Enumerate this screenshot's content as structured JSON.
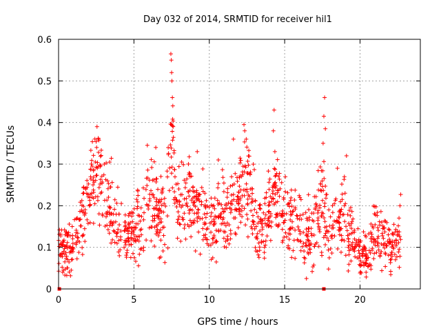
{
  "chart_data": {
    "type": "scatter",
    "title": "Day 032 of 2014, SRMTID for receiver hil1",
    "xlabel": "GPS time / hours",
    "ylabel": "SRMTID / TECUs",
    "xlim": [
      0,
      24
    ],
    "ylim": [
      0,
      0.6
    ],
    "x_ticks": [
      0,
      5,
      10,
      15,
      20
    ],
    "x_tick_labels": [
      "0",
      "5",
      "10",
      "15",
      "20"
    ],
    "y_ticks": [
      0,
      0.1,
      0.2,
      0.3,
      0.4,
      0.5,
      0.6
    ],
    "y_tick_labels": [
      "0",
      "0.1",
      "0.2",
      "0.3",
      "0.4",
      "0.5",
      "0.6"
    ],
    "grid": true,
    "marker": "plus",
    "color": "#ff0000",
    "x_range": [
      0.0,
      22.7
    ],
    "envelope": [
      [
        0.0,
        0.1,
        0.03
      ],
      [
        0.5,
        0.09,
        0.03
      ],
      [
        1.0,
        0.08,
        0.04
      ],
      [
        1.5,
        0.15,
        0.04
      ],
      [
        2.0,
        0.2,
        0.04
      ],
      [
        2.3,
        0.27,
        0.05
      ],
      [
        2.6,
        0.3,
        0.05
      ],
      [
        3.0,
        0.22,
        0.05
      ],
      [
        3.5,
        0.2,
        0.05
      ],
      [
        4.0,
        0.14,
        0.04
      ],
      [
        4.5,
        0.12,
        0.03
      ],
      [
        5.0,
        0.13,
        0.04
      ],
      [
        5.5,
        0.16,
        0.05
      ],
      [
        6.0,
        0.24,
        0.06
      ],
      [
        6.5,
        0.18,
        0.05
      ],
      [
        7.0,
        0.17,
        0.05
      ],
      [
        7.3,
        0.22,
        0.06
      ],
      [
        7.5,
        0.35,
        0.08
      ],
      [
        7.8,
        0.2,
        0.05
      ],
      [
        8.3,
        0.2,
        0.05
      ],
      [
        9.0,
        0.21,
        0.05
      ],
      [
        9.5,
        0.18,
        0.05
      ],
      [
        10.0,
        0.15,
        0.04
      ],
      [
        10.5,
        0.16,
        0.04
      ],
      [
        11.0,
        0.18,
        0.05
      ],
      [
        11.5,
        0.2,
        0.05
      ],
      [
        12.0,
        0.22,
        0.05
      ],
      [
        12.4,
        0.28,
        0.06
      ],
      [
        12.8,
        0.2,
        0.05
      ],
      [
        13.2,
        0.14,
        0.04
      ],
      [
        13.7,
        0.16,
        0.04
      ],
      [
        14.2,
        0.22,
        0.05
      ],
      [
        14.5,
        0.25,
        0.06
      ],
      [
        15.0,
        0.18,
        0.05
      ],
      [
        15.5,
        0.17,
        0.04
      ],
      [
        16.0,
        0.16,
        0.04
      ],
      [
        16.5,
        0.12,
        0.04
      ],
      [
        17.0,
        0.15,
        0.05
      ],
      [
        17.5,
        0.22,
        0.06
      ],
      [
        17.9,
        0.15,
        0.05
      ],
      [
        18.5,
        0.14,
        0.04
      ],
      [
        19.0,
        0.18,
        0.05
      ],
      [
        19.5,
        0.12,
        0.03
      ],
      [
        20.0,
        0.08,
        0.02
      ],
      [
        20.5,
        0.09,
        0.03
      ],
      [
        21.0,
        0.13,
        0.04
      ],
      [
        21.5,
        0.12,
        0.03
      ],
      [
        22.0,
        0.1,
        0.03
      ],
      [
        22.7,
        0.11,
        0.03
      ]
    ],
    "spikes": [
      {
        "x": 2.55,
        "y": 0.39
      },
      {
        "x": 2.65,
        "y": 0.36
      },
      {
        "x": 6.45,
        "y": 0.34
      },
      {
        "x": 7.45,
        "y": 0.565
      },
      {
        "x": 7.48,
        "y": 0.55
      },
      {
        "x": 7.5,
        "y": 0.52
      },
      {
        "x": 7.52,
        "y": 0.5
      },
      {
        "x": 7.55,
        "y": 0.46
      },
      {
        "x": 7.58,
        "y": 0.44
      },
      {
        "x": 7.6,
        "y": 0.39
      },
      {
        "x": 9.2,
        "y": 0.33
      },
      {
        "x": 10.6,
        "y": 0.31
      },
      {
        "x": 11.6,
        "y": 0.36
      },
      {
        "x": 12.3,
        "y": 0.395
      },
      {
        "x": 12.35,
        "y": 0.38
      },
      {
        "x": 12.45,
        "y": 0.36
      },
      {
        "x": 14.3,
        "y": 0.43
      },
      {
        "x": 14.25,
        "y": 0.38
      },
      {
        "x": 14.35,
        "y": 0.33
      },
      {
        "x": 17.65,
        "y": 0.46
      },
      {
        "x": 17.6,
        "y": 0.415
      },
      {
        "x": 17.7,
        "y": 0.385
      },
      {
        "x": 17.55,
        "y": 0.35
      },
      {
        "x": 19.1,
        "y": 0.32
      },
      {
        "x": 18.5,
        "y": 0.29
      },
      {
        "x": 22.7,
        "y": 0.227
      },
      {
        "x": 22.65,
        "y": 0.2
      }
    ],
    "zero_markers": [
      {
        "x": 0.05,
        "y": 0
      },
      {
        "x": 17.6,
        "y": 0
      }
    ]
  }
}
